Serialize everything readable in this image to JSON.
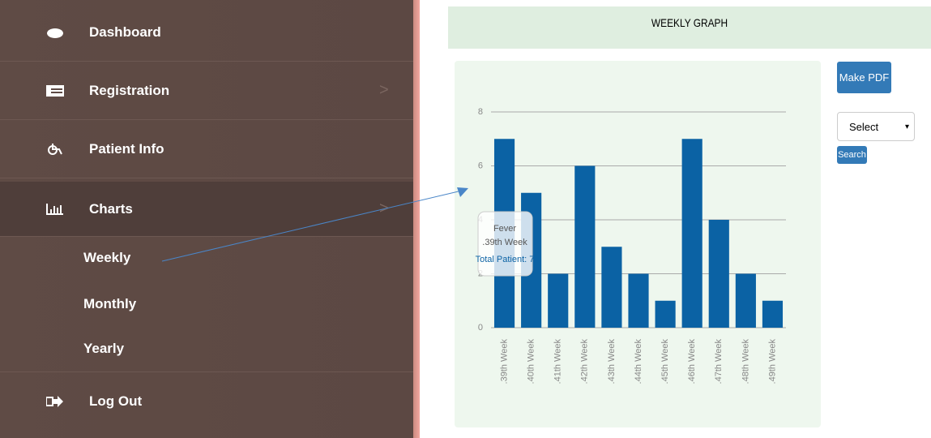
{
  "sidebar": {
    "items": [
      "Dashboard",
      "Registration",
      "Patient Info",
      "Charts"
    ],
    "submenu": [
      "Weekly",
      "Monthly",
      "Yearly"
    ],
    "logout": "Log Out"
  },
  "header": {
    "title": "WEEKLY GRAPH"
  },
  "controls": {
    "pdf_button": "Make PDF",
    "select": "Select",
    "search_button": "Search"
  },
  "chart_data": {
    "type": "bar",
    "categories": [
      ".39th Week",
      ".40th Week",
      ".41th Week",
      ".42th Week",
      ".43th Week",
      ".44th Week",
      ".45th Week",
      ".46th Week",
      ".47th Week",
      ".48th Week",
      ".49th Week"
    ],
    "series": [
      {
        "name": "Fever",
        "color": "#0b62a4",
        "values": [
          7,
          5,
          2,
          6,
          3,
          2,
          1,
          7,
          4,
          2,
          1
        ]
      }
    ],
    "ylim": [
      0,
      8
    ],
    "yticks": [
      0,
      2,
      4,
      6,
      8
    ],
    "grid": true,
    "tooltip": {
      "label": "Total Patient: 7"
    }
  }
}
